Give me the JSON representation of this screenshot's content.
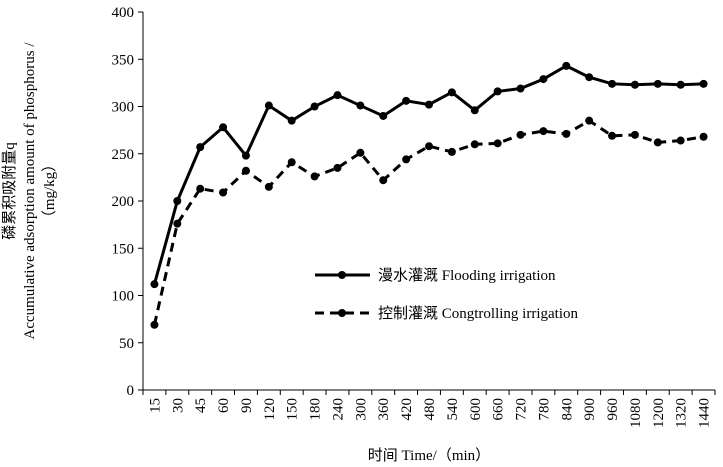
{
  "chart_data": {
    "type": "line",
    "x_label": "时间 Time/（min）",
    "y_label": [
      "磷累积吸附量q",
      "Accumulative adsorption amount of phosphorus /",
      "（mg/kg）"
    ],
    "categories": [
      "15",
      "30",
      "45",
      "60",
      "90",
      "120",
      "150",
      "180",
      "240",
      "300",
      "360",
      "420",
      "480",
      "540",
      "600",
      "660",
      "720",
      "780",
      "840",
      "900",
      "960",
      "1080",
      "1200",
      "1320",
      "1440"
    ],
    "series": [
      {
        "name": "漫水灌溉 Flooding irrigation",
        "color": "#000000",
        "dash": false,
        "values": [
          112,
          200,
          257,
          278,
          248,
          301,
          285,
          300,
          312,
          301,
          290,
          306,
          302,
          315,
          296,
          316,
          319,
          329,
          343,
          331,
          324,
          323,
          324,
          323,
          324
        ]
      },
      {
        "name": "控制灌溉 Congtrolling irrigation",
        "color": "#000000",
        "dash": true,
        "values": [
          69,
          176,
          213,
          209,
          232,
          215,
          241,
          226,
          235,
          251,
          222,
          244,
          258,
          252,
          260,
          261,
          270,
          274,
          271,
          285,
          269,
          270,
          262,
          264,
          268
        ]
      }
    ],
    "ylim": [
      0,
      400
    ],
    "yticks": [
      0,
      50,
      100,
      150,
      200,
      250,
      300,
      350,
      400
    ],
    "grid": false
  }
}
